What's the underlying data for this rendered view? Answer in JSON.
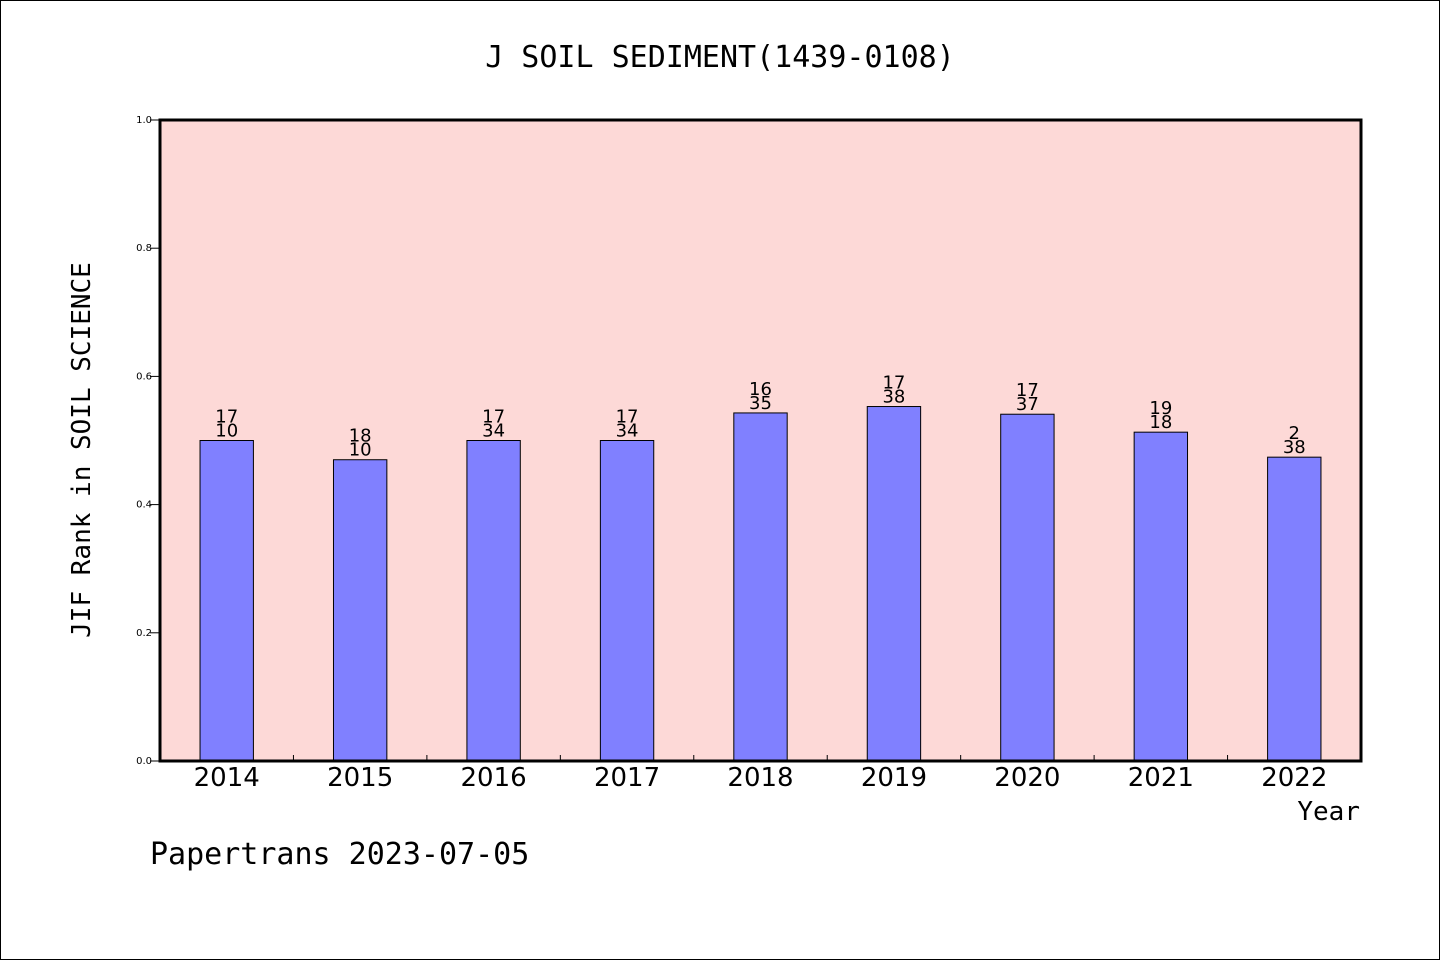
{
  "chart_data": {
    "type": "bar",
    "title": "J SOIL SEDIMENT(1439-0108)",
    "xlabel": "Year",
    "ylabel": "JIF Rank in SOIL SCIENCE",
    "ylim": [
      0,
      1.0
    ],
    "yticks": [
      "0.0",
      "0.2",
      "0.4",
      "0.6",
      "0.8",
      "1.0"
    ],
    "categories": [
      "2014",
      "2015",
      "2016",
      "2017",
      "2018",
      "2019",
      "2020",
      "2021",
      "2022"
    ],
    "values": [
      0.5,
      0.47,
      0.5,
      0.5,
      0.543,
      0.553,
      0.541,
      0.513,
      0.474
    ],
    "labels_top": [
      "17",
      "18",
      "17",
      "17",
      "16",
      "17",
      "17",
      "19",
      "2"
    ],
    "labels_bottom": [
      "10",
      "10",
      "34",
      "34",
      "35",
      "38",
      "37",
      "18",
      "38"
    ],
    "grid": false,
    "colors": {
      "plot_background": "#fdd9d7",
      "bar_fill": "#8080ff",
      "bar_stroke": "#000000"
    }
  },
  "footer": "Papertrans 2023-07-05"
}
